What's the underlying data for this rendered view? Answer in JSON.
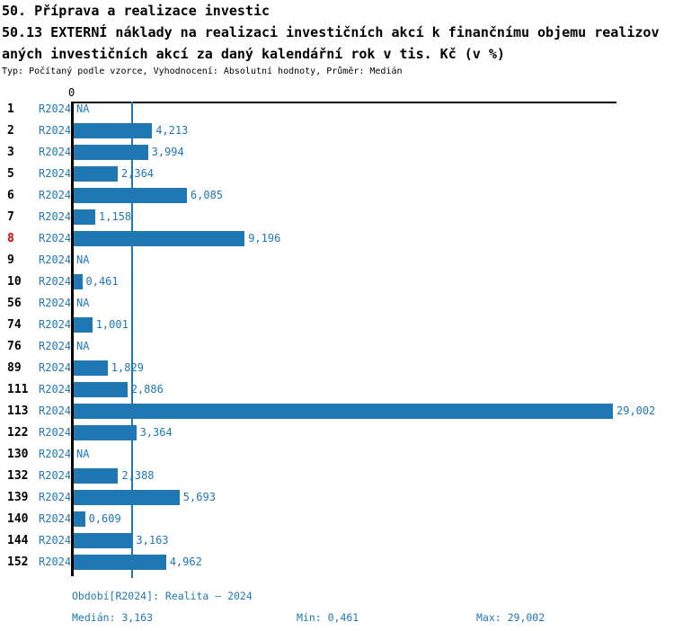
{
  "header": {
    "line1": "50. Příprava a realizace investic",
    "line2": "50.13 EXTERNÍ náklady na realizaci investičních akcí k finančnímu objemu realizov",
    "line3": "aných investičních akcí za daný kalendářní rok v tis. Kč (v %)",
    "meta": "Typ: Počítaný podle vzorce, Vyhodnocení: Absolutní hodnoty, Průměr: Medián"
  },
  "chart_data": {
    "type": "bar",
    "orientation": "horizontal",
    "series_label": "R2024",
    "xlabel": "",
    "ylabel": "",
    "x_axis": {
      "zero_tick_label": "0",
      "x_max": 29.002
    },
    "median_value": 3.163,
    "grid": false,
    "legend": "none",
    "colors": {
      "bar": "#1f77b4",
      "text_blue": "#1f77b4",
      "highlight_row": "#e00000",
      "axis": "#000000"
    },
    "rows": [
      {
        "id": "1",
        "value": null,
        "label": "NA",
        "highlight": false
      },
      {
        "id": "2",
        "value": 4.213,
        "label": "4,213",
        "highlight": false
      },
      {
        "id": "3",
        "value": 3.994,
        "label": "3,994",
        "highlight": false
      },
      {
        "id": "5",
        "value": 2.364,
        "label": "2,364",
        "highlight": false
      },
      {
        "id": "6",
        "value": 6.085,
        "label": "6,085",
        "highlight": false
      },
      {
        "id": "7",
        "value": 1.158,
        "label": "1,158",
        "highlight": false
      },
      {
        "id": "8",
        "value": 9.196,
        "label": "9,196",
        "highlight": true
      },
      {
        "id": "9",
        "value": null,
        "label": "NA",
        "highlight": false
      },
      {
        "id": "10",
        "value": 0.461,
        "label": "0,461",
        "highlight": false
      },
      {
        "id": "56",
        "value": null,
        "label": "NA",
        "highlight": false
      },
      {
        "id": "74",
        "value": 1.001,
        "label": "1,001",
        "highlight": false
      },
      {
        "id": "76",
        "value": null,
        "label": "NA",
        "highlight": false
      },
      {
        "id": "89",
        "value": 1.829,
        "label": "1,829",
        "highlight": false
      },
      {
        "id": "111",
        "value": 2.886,
        "label": "2,886",
        "highlight": false
      },
      {
        "id": "113",
        "value": 29.002,
        "label": "29,002",
        "highlight": false
      },
      {
        "id": "122",
        "value": 3.364,
        "label": "3,364",
        "highlight": false
      },
      {
        "id": "130",
        "value": null,
        "label": "NA",
        "highlight": false
      },
      {
        "id": "132",
        "value": 2.388,
        "label": "2,388",
        "highlight": false
      },
      {
        "id": "139",
        "value": 5.693,
        "label": "5,693",
        "highlight": false
      },
      {
        "id": "140",
        "value": 0.609,
        "label": "0,609",
        "highlight": false
      },
      {
        "id": "144",
        "value": 3.163,
        "label": "3,163",
        "highlight": false
      },
      {
        "id": "152",
        "value": 4.962,
        "label": "4,962",
        "highlight": false
      }
    ]
  },
  "footer": {
    "period": "Období[R2024]: Realita – 2024",
    "median": "Medián: 3,163",
    "min": "Min: 0,461",
    "max": "Max: 29,002"
  }
}
